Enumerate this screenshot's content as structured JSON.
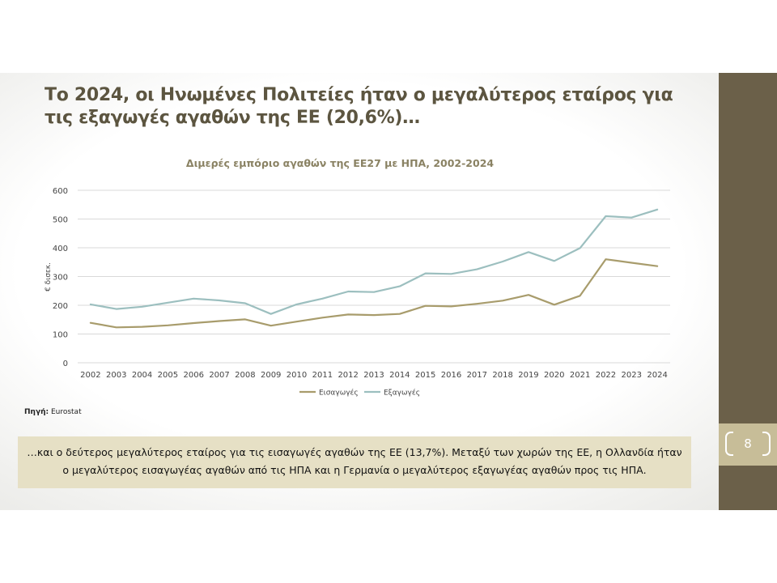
{
  "slide": {
    "title": "Το 2024, οι Ηνωμένες Πολιτείες ήταν ο μεγαλύτερος εταίρος για τις εξαγωγές αγαθών της ΕΕ (20,6%)…",
    "page_number": "8",
    "source_label": "Πηγή:",
    "source_value": " Eurostat",
    "note": "…και ο δεύτερος μεγαλύτερος εταίρος για τις εισαγωγές αγαθών της ΕΕ (13,7%). Μεταξύ των χωρών της ΕΕ, η Ολλανδία ήταν ο μεγαλύτερος εισαγωγέας αγαθών από τις ΗΠΑ και η Γερμανία ο μεγαλύτερος εξαγωγέας αγαθών προς τις ΗΠΑ."
  },
  "colors": {
    "side_bar": "#6b6049",
    "page_box": "#c7bd98",
    "title_text": "#5c5540",
    "chart_title": "#8a8263",
    "note_bg": "#e6e0c5"
  },
  "chart_data": {
    "type": "line",
    "title": "Διμερές εμπόριο αγαθών της ΕΕ27 με ΗΠΑ, 2002-2024",
    "ylabel": "€ δισεκ.",
    "xlabel": "",
    "ylim": [
      0,
      600
    ],
    "yticks": [
      0,
      100,
      200,
      300,
      400,
      500,
      600
    ],
    "grid": true,
    "legend_position": "bottom",
    "x": [
      "2002",
      "2003",
      "2004",
      "2005",
      "2006",
      "2007",
      "2008",
      "2009",
      "2010",
      "2011",
      "2012",
      "2013",
      "2014",
      "2015",
      "2016",
      "2017",
      "2018",
      "2019",
      "2020",
      "2021",
      "2022",
      "2023",
      "2024"
    ],
    "series": [
      {
        "name": "Εισαγωγές",
        "color": "#a89c6c",
        "values": [
          139,
          123,
          125,
          130,
          138,
          145,
          151,
          129,
          143,
          157,
          168,
          166,
          170,
          198,
          196,
          205,
          216,
          236,
          202,
          233,
          360,
          348,
          336
        ]
      },
      {
        "name": "Εξαγωγές",
        "color": "#9cbfbf",
        "values": [
          203,
          187,
          195,
          209,
          223,
          217,
          207,
          170,
          203,
          223,
          248,
          246,
          266,
          311,
          309,
          325,
          352,
          385,
          354,
          399,
          510,
          505,
          533
        ]
      }
    ]
  }
}
